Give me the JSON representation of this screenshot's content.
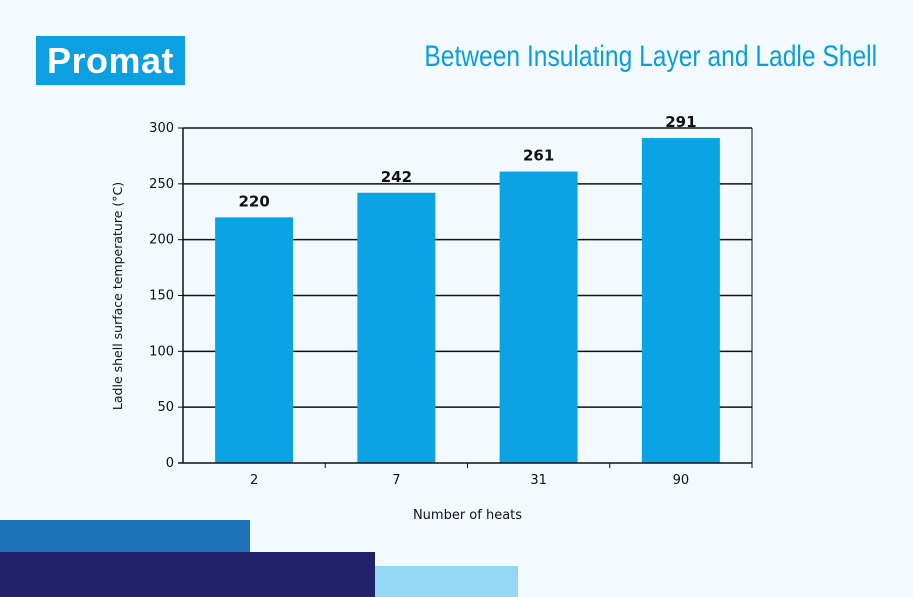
{
  "logo": {
    "text": "Promat"
  },
  "header": {
    "title": "Between Insulating Layer and Ladle Shell"
  },
  "colors": {
    "bar": "#0aa3e4",
    "brand": "#0aa0e2",
    "block1": "#1d72b8",
    "block2": "#22226a",
    "block3": "#94d6f3"
  },
  "chart_data": {
    "type": "bar",
    "title": "Between Insulating Layer and Ladle Shell",
    "categories": [
      "2",
      "7",
      "31",
      "90"
    ],
    "values": [
      220,
      242,
      261,
      291
    ],
    "data_labels": [
      "220",
      "242",
      "261",
      "291"
    ],
    "xlabel": "Number of heats",
    "ylabel": "Ladle shell surface temperature (°C)",
    "ylim": [
      0,
      300
    ],
    "yticks": [
      0,
      50,
      100,
      150,
      200,
      250,
      300
    ],
    "grid": true
  }
}
